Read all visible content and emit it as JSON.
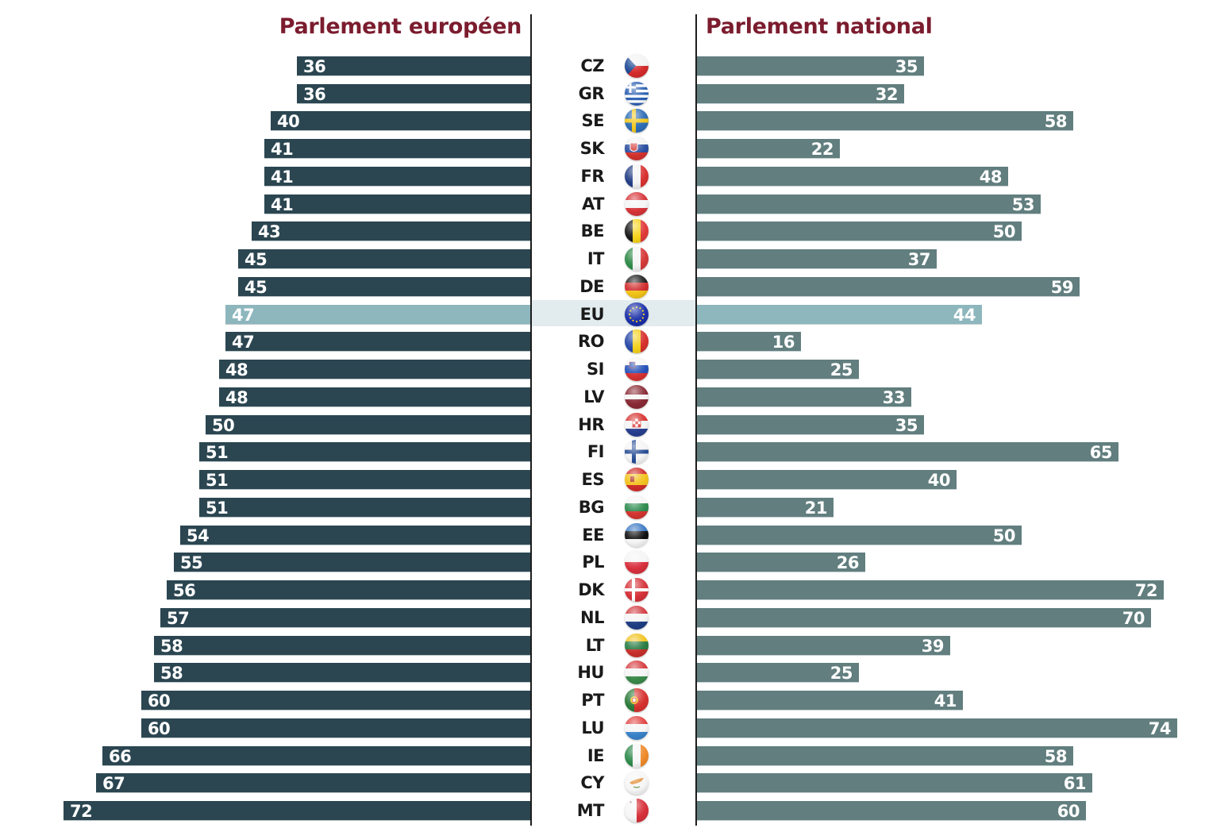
{
  "chart_data": {
    "type": "bar",
    "orientation": "horizontal-butterfly",
    "title_left": "Parlement européen",
    "title_right": "Parlement national",
    "xlim": [
      0,
      75
    ],
    "grid": false,
    "legend": "none",
    "highlight_category": "EU",
    "colors": {
      "title": "#7b1c2e",
      "left_bar": "#2b4651",
      "right_bar": "#627e7f",
      "highlight_bar": "#8db6bd",
      "highlight_band": "#e2ecee",
      "label_text": "#ffffff",
      "code_text": "#1a1a1a"
    },
    "categories": [
      "CZ",
      "GR",
      "SE",
      "SK",
      "FR",
      "AT",
      "BE",
      "IT",
      "DE",
      "EU",
      "RO",
      "SI",
      "LV",
      "HR",
      "FI",
      "ES",
      "BG",
      "EE",
      "PL",
      "DK",
      "NL",
      "LT",
      "HU",
      "PT",
      "LU",
      "IE",
      "CY",
      "MT"
    ],
    "series": [
      {
        "name": "Parlement européen",
        "side": "left",
        "values": [
          36,
          36,
          40,
          41,
          41,
          41,
          43,
          45,
          45,
          47,
          47,
          48,
          48,
          50,
          51,
          51,
          51,
          54,
          55,
          56,
          57,
          58,
          58,
          60,
          60,
          66,
          67,
          72
        ]
      },
      {
        "name": "Parlement national",
        "side": "right",
        "values": [
          35,
          32,
          58,
          22,
          48,
          53,
          50,
          37,
          59,
          44,
          16,
          25,
          33,
          35,
          65,
          40,
          21,
          50,
          26,
          72,
          70,
          39,
          25,
          41,
          74,
          58,
          61,
          60
        ]
      }
    ],
    "flags": [
      "czech-flag-icon",
      "greece-flag-icon",
      "sweden-flag-icon",
      "slovakia-flag-icon",
      "france-flag-icon",
      "austria-flag-icon",
      "belgium-flag-icon",
      "italy-flag-icon",
      "germany-flag-icon",
      "eu-flag-icon",
      "romania-flag-icon",
      "slovenia-flag-icon",
      "latvia-flag-icon",
      "croatia-flag-icon",
      "finland-flag-icon",
      "spain-flag-icon",
      "bulgaria-flag-icon",
      "estonia-flag-icon",
      "poland-flag-icon",
      "denmark-flag-icon",
      "netherlands-flag-icon",
      "lithuania-flag-icon",
      "hungary-flag-icon",
      "portugal-flag-icon",
      "luxembourg-flag-icon",
      "ireland-flag-icon",
      "cyprus-flag-icon",
      "malta-flag-icon"
    ]
  }
}
